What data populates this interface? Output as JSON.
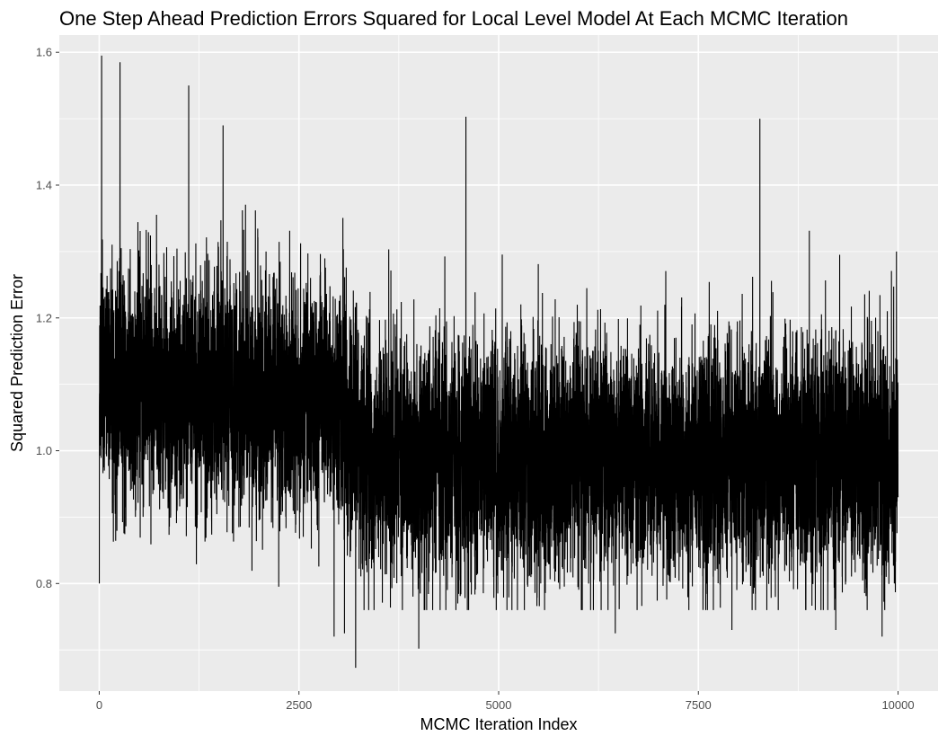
{
  "chart_data": {
    "type": "line",
    "title": "One Step Ahead Prediction Errors Squared for Local Level Model At Each MCMC Iteration",
    "xlabel": "MCMC Iteration Index",
    "ylabel": "Squared Prediction Error",
    "xlim": [
      -500,
      10500
    ],
    "ylim": [
      0.638,
      1.626
    ],
    "x_ticks": [
      0,
      2500,
      5000,
      7500,
      10000
    ],
    "x_tick_labels": [
      "0",
      "2500",
      "5000",
      "7500",
      "10000"
    ],
    "y_ticks": [
      0.8,
      1.0,
      1.2,
      1.4,
      1.6
    ],
    "y_tick_labels": [
      "0.8",
      "1.0",
      "1.2",
      "1.4",
      "1.6"
    ],
    "grid": true,
    "legend": "none",
    "series": [
      {
        "color": "#000000",
        "x_start": 1,
        "x_step": 1,
        "n_points": 10000,
        "level_profile": [
          {
            "x": 0,
            "mean": 1.1,
            "sd": 0.09
          },
          {
            "x": 3000,
            "mean": 1.07,
            "sd": 0.09
          },
          {
            "x": 3300,
            "mean": 0.99,
            "sd": 0.09
          },
          {
            "x": 10000,
            "mean": 0.99,
            "sd": 0.09
          }
        ],
        "notable_points": [
          {
            "x": 1,
            "y": 0.8
          },
          {
            "x": 30,
            "y": 1.595
          },
          {
            "x": 260,
            "y": 1.585
          },
          {
            "x": 1120,
            "y": 1.55
          },
          {
            "x": 1550,
            "y": 1.49
          },
          {
            "x": 4590,
            "y": 1.503
          },
          {
            "x": 8270,
            "y": 1.5
          },
          {
            "x": 3210,
            "y": 0.673
          },
          {
            "x": 4000,
            "y": 0.702
          },
          {
            "x": 2940,
            "y": 0.72
          },
          {
            "x": 3070,
            "y": 0.725
          },
          {
            "x": 9800,
            "y": 0.72
          },
          {
            "x": 6460,
            "y": 0.725
          },
          {
            "x": 7920,
            "y": 0.73
          },
          {
            "x": 9220,
            "y": 0.73
          },
          {
            "x": 9980,
            "y": 1.3
          },
          {
            "x": 10000,
            "y": 0.93
          }
        ]
      }
    ]
  }
}
